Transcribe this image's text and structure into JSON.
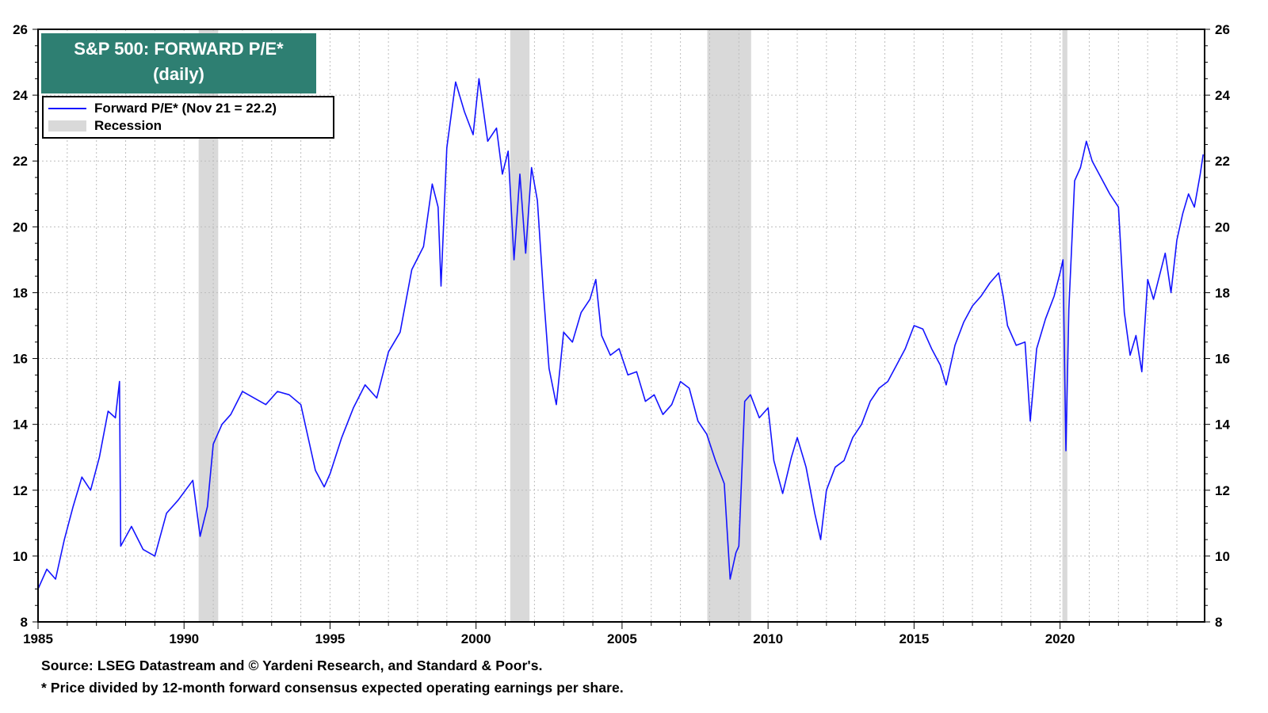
{
  "chart_data": {
    "type": "line",
    "title": "S&P 500: FORWARD P/E*",
    "subtitle": "(daily)",
    "xlabel": "",
    "ylabel": "",
    "xlim": [
      1985,
      2024.95
    ],
    "ylim": [
      8,
      26
    ],
    "x_ticks": [
      "1985",
      "1990",
      "1995",
      "2000",
      "2005",
      "2010",
      "2015",
      "2020"
    ],
    "y_ticks": [
      "8",
      "10",
      "12",
      "14",
      "16",
      "18",
      "20",
      "22",
      "24",
      "26"
    ],
    "grid": true,
    "legend_position": "top-left",
    "colors": {
      "series": "#1414ff",
      "recession": "#d9d9d9",
      "title_bg": "#2e7f72",
      "title_text": "#ffffff",
      "grid": "#bdbdbd"
    },
    "series": [
      {
        "name": "Forward P/E* (Nov 21 = 22.2)",
        "x": [
          1985.0,
          1985.3,
          1985.6,
          1985.9,
          1986.2,
          1986.5,
          1986.8,
          1987.1,
          1987.4,
          1987.65,
          1987.79,
          1987.83,
          1988.2,
          1988.6,
          1989.0,
          1989.4,
          1989.8,
          1990.3,
          1990.55,
          1990.8,
          1991.0,
          1991.3,
          1991.6,
          1992.0,
          1992.4,
          1992.8,
          1993.2,
          1993.6,
          1994.0,
          1994.5,
          1994.8,
          1995.0,
          1995.4,
          1995.8,
          1996.2,
          1996.6,
          1997.0,
          1997.4,
          1997.8,
          1998.2,
          1998.5,
          1998.7,
          1998.8,
          1999.0,
          1999.3,
          1999.6,
          1999.9,
          2000.1,
          2000.4,
          2000.7,
          2000.9,
          2001.1,
          2001.3,
          2001.5,
          2001.7,
          2001.9,
          2002.1,
          2002.3,
          2002.5,
          2002.75,
          2003.0,
          2003.3,
          2003.6,
          2003.9,
          2004.1,
          2004.3,
          2004.6,
          2004.9,
          2005.2,
          2005.5,
          2005.8,
          2006.1,
          2006.4,
          2006.7,
          2007.0,
          2007.3,
          2007.6,
          2007.9,
          2008.2,
          2008.5,
          2008.7,
          2008.9,
          2009.0,
          2009.2,
          2009.4,
          2009.7,
          2010.0,
          2010.2,
          2010.5,
          2010.8,
          2011.0,
          2011.3,
          2011.6,
          2011.8,
          2012.0,
          2012.3,
          2012.6,
          2012.9,
          2013.2,
          2013.5,
          2013.8,
          2014.1,
          2014.4,
          2014.7,
          2015.0,
          2015.3,
          2015.6,
          2015.9,
          2016.1,
          2016.4,
          2016.7,
          2017.0,
          2017.3,
          2017.6,
          2017.9,
          2018.05,
          2018.2,
          2018.5,
          2018.8,
          2018.98,
          2019.2,
          2019.5,
          2019.8,
          2020.0,
          2020.1,
          2020.2,
          2020.3,
          2020.5,
          2020.7,
          2020.9,
          2021.1,
          2021.4,
          2021.7,
          2022.0,
          2022.2,
          2022.4,
          2022.6,
          2022.8,
          2023.0,
          2023.2,
          2023.4,
          2023.6,
          2023.8,
          2024.0,
          2024.2,
          2024.4,
          2024.6,
          2024.8,
          2024.9
        ],
        "values": [
          9.0,
          9.6,
          9.3,
          10.5,
          11.5,
          12.4,
          12.0,
          13.0,
          14.4,
          14.2,
          15.3,
          10.3,
          10.9,
          10.2,
          10.0,
          11.3,
          11.7,
          12.3,
          10.6,
          11.5,
          13.4,
          14.0,
          14.3,
          15.0,
          14.8,
          14.6,
          15.0,
          14.9,
          14.6,
          12.6,
          12.1,
          12.5,
          13.6,
          14.5,
          15.2,
          14.8,
          16.2,
          16.8,
          18.7,
          19.4,
          21.3,
          20.6,
          18.2,
          22.4,
          24.4,
          23.5,
          22.8,
          24.5,
          22.6,
          23.0,
          21.6,
          22.3,
          19.0,
          21.6,
          19.2,
          21.8,
          20.8,
          18.1,
          15.7,
          14.6,
          16.8,
          16.5,
          17.4,
          17.8,
          18.4,
          16.7,
          16.1,
          16.3,
          15.5,
          15.6,
          14.7,
          14.9,
          14.3,
          14.6,
          15.3,
          15.1,
          14.1,
          13.7,
          12.9,
          12.2,
          9.3,
          10.1,
          10.3,
          14.7,
          14.9,
          14.2,
          14.5,
          12.9,
          11.9,
          13.0,
          13.6,
          12.7,
          11.3,
          10.5,
          12.0,
          12.7,
          12.9,
          13.6,
          14.0,
          14.7,
          15.1,
          15.3,
          15.8,
          16.3,
          17.0,
          16.9,
          16.3,
          15.8,
          15.2,
          16.4,
          17.1,
          17.6,
          17.9,
          18.3,
          18.6,
          17.9,
          17.0,
          16.4,
          16.5,
          14.1,
          16.3,
          17.2,
          17.9,
          18.6,
          19.0,
          13.2,
          17.5,
          21.4,
          21.8,
          22.6,
          22.0,
          21.5,
          21.0,
          20.6,
          17.4,
          16.1,
          16.7,
          15.6,
          18.4,
          17.8,
          18.5,
          19.2,
          18.0,
          19.6,
          20.4,
          21.0,
          20.6,
          21.6,
          22.2
        ],
        "label": ""
      }
    ],
    "recessions": [
      {
        "start": 1990.5,
        "end": 1991.17
      },
      {
        "start": 2001.17,
        "end": 2001.83
      },
      {
        "start": 2007.92,
        "end": 2009.42
      },
      {
        "start": 2020.08,
        "end": 2020.25
      }
    ],
    "legend": [
      {
        "label": "Forward P/E* (Nov 21 = 22.2)",
        "kind": "line"
      },
      {
        "label": "Recession",
        "kind": "swatch"
      }
    ],
    "footnotes": [
      "Source: LSEG Datastream and © Yardeni Research, and Standard & Poor's.",
      "* Price divided by 12-month forward consensus expected operating earnings per share."
    ]
  }
}
